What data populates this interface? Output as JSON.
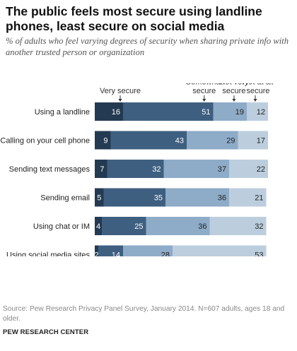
{
  "title": "The public feels most secure using landline phones, least secure on social media",
  "subtitle": "% of adults who feel varying degrees of security when sharing private info with another trusted person or organization",
  "source": "Source: Pew Research Privacy Panel Survey, January 2014. N=607 adults, ages 18 and older.",
  "org": "PEW RESEARCH CENTER",
  "colors": [
    "#243a52",
    "#3e5f80",
    "#8eabc8",
    "#bccede"
  ],
  "chart_data": {
    "type": "bar",
    "orientation": "horizontal",
    "stacked": true,
    "categories": [
      "Using a landline",
      "Calling on your cell phone",
      "Sending text messages",
      "Sending email",
      "Using chat or IM",
      "Using social media sites"
    ],
    "series": [
      {
        "name": "Very secure",
        "values": [
          16,
          9,
          7,
          5,
          4,
          2
        ]
      },
      {
        "name": "Somewhat secure",
        "values": [
          51,
          43,
          32,
          35,
          25,
          14
        ]
      },
      {
        "name": "Not very secure",
        "values": [
          19,
          29,
          37,
          36,
          36,
          28
        ]
      },
      {
        "name": "Not at all secure",
        "values": [
          12,
          17,
          22,
          21,
          32,
          53
        ]
      }
    ],
    "legend_placement": "top"
  }
}
